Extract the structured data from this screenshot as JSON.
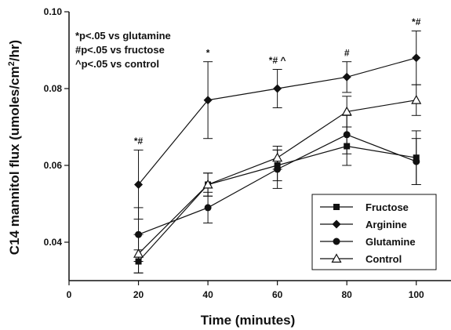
{
  "chart_data": {
    "type": "line",
    "xlabel": "Time (minutes)",
    "ylabel_main": "C14 mannitol flux (umoles/cm",
    "ylabel_sup": "2",
    "ylabel_end": "/hr)",
    "xlim": [
      0,
      110
    ],
    "ylim": [
      0.03,
      0.1
    ],
    "x_ticks": [
      0,
      20,
      40,
      60,
      80,
      100
    ],
    "y_ticks": [
      0.04,
      0.06,
      0.08,
      0.1
    ],
    "y_tick_labels": [
      "0.04",
      "0.06",
      "0.08",
      "0.10"
    ],
    "grid": false,
    "legend_position": "bottom-right",
    "x": [
      20,
      40,
      60,
      80,
      100
    ],
    "series": [
      {
        "name": "Fructose",
        "marker": "square",
        "values": [
          0.035,
          0.055,
          0.06,
          0.065,
          0.062
        ],
        "err": [
          0.003,
          0.003,
          0.004,
          0.005,
          0.007
        ]
      },
      {
        "name": "Arginine",
        "marker": "diamond",
        "values": [
          0.055,
          0.077,
          0.08,
          0.083,
          0.088
        ],
        "err": [
          0.009,
          0.01,
          0.005,
          0.004,
          0.007
        ]
      },
      {
        "name": "Glutamine",
        "marker": "circle",
        "values": [
          0.042,
          0.049,
          0.059,
          0.068,
          0.061
        ],
        "err": [
          0.007,
          0.004,
          0.005,
          0.005,
          0.006
        ]
      },
      {
        "name": "Control",
        "marker": "triangle-open",
        "values": [
          0.037,
          0.055,
          0.062,
          0.074,
          0.077
        ],
        "err": [
          0.005,
          0.003,
          0.003,
          0.004,
          0.004
        ]
      }
    ],
    "annotations_legend": [
      "*p<.05 vs glutamine",
      "#p<.05 vs fructose",
      "^p<.05 vs control"
    ],
    "significance_marks": [
      {
        "x": 20,
        "text": "*#",
        "y": 0.0655
      },
      {
        "x": 40,
        "text": "*",
        "y": 0.0885
      },
      {
        "x": 60,
        "text": "*# ^",
        "y": 0.0865
      },
      {
        "x": 80,
        "text": "#",
        "y": 0.0885
      },
      {
        "x": 100,
        "text": "*#",
        "y": 0.0965
      }
    ]
  }
}
